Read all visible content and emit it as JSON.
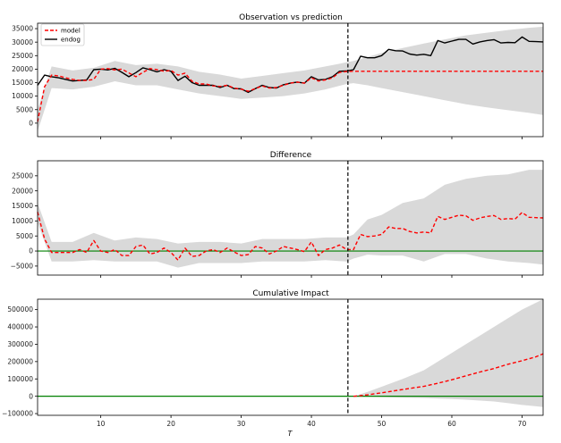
{
  "chart_data": [
    {
      "type": "line",
      "title": "Observation vs prediction",
      "xlabel": "",
      "ylabel": "",
      "xlim": [
        1,
        73
      ],
      "ylim": [
        -5000,
        37000
      ],
      "yticks": [
        0,
        5000,
        10000,
        15000,
        20000,
        25000,
        30000,
        35000
      ],
      "ytick_labels": [
        "0",
        "5000",
        "10000",
        "15000",
        "20000",
        "25000",
        "30000",
        "35000"
      ],
      "xticks": [
        10,
        20,
        30,
        40,
        50,
        60,
        70
      ],
      "show_xtick_labels": false,
      "intervention_x": 45.2,
      "legend": {
        "placement": "top-left",
        "entries": [
          "model",
          "endog"
        ]
      },
      "series": [
        {
          "name": "endog",
          "style": "solid",
          "color": "#000000",
          "x": [
            1,
            2,
            3,
            4,
            5,
            6,
            7,
            8,
            9,
            10,
            11,
            12,
            13,
            14,
            15,
            16,
            17,
            18,
            19,
            20,
            21,
            22,
            23,
            24,
            25,
            26,
            27,
            28,
            29,
            30,
            31,
            32,
            33,
            34,
            35,
            36,
            37,
            38,
            39,
            40,
            41,
            42,
            43,
            44,
            45,
            46,
            47,
            48,
            49,
            50,
            51,
            52,
            53,
            54,
            55,
            56,
            57,
            58,
            59,
            60,
            61,
            62,
            63,
            64,
            65,
            66,
            67,
            68,
            69,
            70,
            71,
            72,
            73
          ],
          "values": [
            14000,
            17800,
            17200,
            16800,
            16200,
            15600,
            15800,
            16000,
            19800,
            20000,
            19700,
            20300,
            18800,
            17200,
            18700,
            20500,
            19800,
            19000,
            19800,
            19200,
            15800,
            17400,
            15000,
            14000,
            14000,
            14000,
            13200,
            14000,
            12800,
            12700,
            11400,
            12800,
            14000,
            13200,
            13000,
            14200,
            14800,
            15200,
            14800,
            17200,
            16000,
            16200,
            17200,
            19200,
            19300,
            19800,
            24800,
            24200,
            24200,
            25000,
            27300,
            26800,
            26700,
            25600,
            25200,
            25500,
            25000,
            30600,
            29700,
            30400,
            31000,
            31000,
            29300,
            30100,
            30600,
            30900,
            29700,
            29900,
            29800,
            31900,
            30300,
            30200,
            30100
          ]
        },
        {
          "name": "model",
          "style": "dashed",
          "color": "#ff0000",
          "x": [
            1,
            2,
            3,
            4,
            5,
            6,
            7,
            8,
            9,
            10,
            11,
            12,
            13,
            14,
            15,
            16,
            17,
            18,
            19,
            20,
            21,
            22,
            23,
            24,
            25,
            26,
            27,
            28,
            29,
            30,
            31,
            32,
            33,
            34,
            35,
            36,
            37,
            38,
            39,
            40,
            41,
            42,
            43,
            44,
            45,
            46,
            47,
            48,
            49,
            50,
            51,
            52,
            53,
            54,
            55,
            56,
            57,
            58,
            59,
            60,
            61,
            62,
            63,
            64,
            65,
            66,
            67,
            68,
            69,
            70,
            71,
            72,
            73
          ],
          "values": [
            500,
            13500,
            17800,
            17500,
            16800,
            16200,
            15800,
            15800,
            16200,
            20000,
            20200,
            19700,
            20000,
            18600,
            17200,
            18800,
            20200,
            19800,
            19200,
            19500,
            17800,
            18500,
            15500,
            14500,
            14500,
            13800,
            13600,
            14000,
            13000,
            12600,
            11800,
            12800,
            13800,
            13000,
            13200,
            14000,
            14800,
            15200,
            14800,
            16800,
            15600,
            16000,
            16800,
            18800,
            19100,
            19200,
            19200,
            19200,
            19200,
            19200,
            19200,
            19200,
            19200,
            19200,
            19200,
            19200,
            19200,
            19200,
            19200,
            19200,
            19200,
            19200,
            19200,
            19200,
            19200,
            19200,
            19200,
            19200,
            19200,
            19200,
            19200,
            19200,
            19200
          ]
        }
      ],
      "band": {
        "x": [
          1,
          3,
          6,
          9,
          12,
          15,
          18,
          21,
          24,
          27,
          30,
          33,
          36,
          39,
          42,
          45,
          46,
          48,
          50,
          53,
          56,
          59,
          62,
          65,
          68,
          71,
          73
        ],
        "lower": [
          -3000,
          13000,
          12500,
          13500,
          15500,
          14000,
          14000,
          12500,
          11000,
          10000,
          9000,
          9500,
          10000,
          11000,
          12500,
          14500,
          14800,
          14000,
          13000,
          11500,
          10000,
          8500,
          7000,
          5800,
          4800,
          3800,
          3000
        ],
        "upper": [
          5000,
          21000,
          19500,
          20500,
          23000,
          21500,
          22000,
          21000,
          19000,
          18000,
          16500,
          17500,
          18500,
          19500,
          21000,
          22500,
          23000,
          24500,
          26000,
          27800,
          29500,
          31000,
          32500,
          33500,
          34500,
          35300,
          35700
        ]
      }
    },
    {
      "type": "line",
      "title": "Difference",
      "xlabel": "",
      "ylabel": "",
      "xlim": [
        1,
        73
      ],
      "ylim": [
        -8000,
        30000
      ],
      "yticks": [
        -5000,
        0,
        5000,
        10000,
        15000,
        20000,
        25000
      ],
      "ytick_labels": [
        "−5000",
        "0",
        "5000",
        "10000",
        "15000",
        "20000",
        "25000"
      ],
      "xticks": [
        10,
        20,
        30,
        40,
        50,
        60,
        70
      ],
      "show_xtick_labels": false,
      "intervention_x": 45.2,
      "zero_line_color": "#008000",
      "series": [
        {
          "style": "dashed",
          "color": "#ff0000",
          "x": [
            1,
            2,
            3,
            4,
            5,
            6,
            7,
            8,
            9,
            10,
            11,
            12,
            13,
            14,
            15,
            16,
            17,
            18,
            19,
            20,
            21,
            22,
            23,
            24,
            25,
            26,
            27,
            28,
            29,
            30,
            31,
            32,
            33,
            34,
            35,
            36,
            37,
            38,
            39,
            40,
            41,
            42,
            43,
            44,
            45,
            46,
            47,
            48,
            49,
            50,
            51,
            52,
            53,
            54,
            55,
            56,
            57,
            58,
            59,
            60,
            61,
            62,
            63,
            64,
            65,
            66,
            67,
            68,
            69,
            70,
            71,
            72,
            73
          ],
          "values": [
            13000,
            4000,
            -500,
            -500,
            -500,
            -500,
            500,
            -500,
            3500,
            0,
            -500,
            500,
            -1500,
            -1500,
            1500,
            2000,
            -1000,
            -500,
            1000,
            -500,
            -3000,
            1000,
            -1800,
            -1500,
            0,
            500,
            -500,
            1000,
            -300,
            -1500,
            -1200,
            1500,
            1000,
            -1000,
            0,
            1500,
            1000,
            500,
            -200,
            3000,
            -1500,
            500,
            1000,
            2000,
            500,
            500,
            5500,
            4800,
            5000,
            5500,
            8000,
            7500,
            7500,
            6500,
            6000,
            6300,
            6000,
            11500,
            10500,
            11200,
            11900,
            11700,
            10200,
            11000,
            11500,
            11800,
            10500,
            10800,
            10600,
            12800,
            11200,
            11100,
            11000
          ]
        }
      ],
      "band": {
        "x": [
          1,
          3,
          6,
          9,
          12,
          15,
          18,
          21,
          24,
          27,
          30,
          33,
          36,
          39,
          42,
          45,
          46,
          48,
          50,
          53,
          56,
          59,
          62,
          65,
          68,
          71,
          73
        ],
        "lower": [
          9500,
          -3500,
          -3500,
          -3000,
          -3500,
          -3500,
          -3500,
          -5500,
          -4000,
          -4000,
          -4000,
          -3500,
          -3500,
          -3500,
          -3000,
          -3500,
          -2500,
          -1200,
          -1500,
          -1500,
          -3500,
          -1000,
          -1000,
          -2500,
          -3500,
          -4000,
          -4500
        ],
        "upper": [
          16000,
          3000,
          3000,
          6000,
          3500,
          4500,
          4000,
          2500,
          3000,
          3000,
          2500,
          4000,
          4000,
          4000,
          4500,
          4500,
          5500,
          10500,
          12000,
          16000,
          17500,
          22000,
          24000,
          25000,
          25500,
          27000,
          27000
        ]
      }
    },
    {
      "type": "line",
      "title": "Cumulative Impact",
      "xlabel": "T",
      "ylabel": "",
      "xlim": [
        1,
        73
      ],
      "ylim": [
        -110000,
        560000
      ],
      "yticks": [
        -100000,
        0,
        100000,
        200000,
        300000,
        400000,
        500000
      ],
      "ytick_labels": [
        "−100000",
        "0",
        "100000",
        "200000",
        "300000",
        "400000",
        "500000"
      ],
      "xticks": [
        10,
        20,
        30,
        40,
        50,
        60,
        70
      ],
      "xtick_labels": [
        "10",
        "20",
        "30",
        "40",
        "50",
        "60",
        "70"
      ],
      "show_xtick_labels": true,
      "intervention_x": 45.2,
      "zero_line_color": "#008000",
      "series": [
        {
          "style": "dashed",
          "color": "#ff0000",
          "x": [
            46,
            48,
            50,
            52,
            54,
            56,
            58,
            60,
            62,
            64,
            66,
            68,
            70,
            72,
            73
          ],
          "values": [
            0,
            8000,
            20000,
            33000,
            45000,
            57000,
            75000,
            95000,
            118000,
            140000,
            160000,
            185000,
            205000,
            228000,
            245000
          ]
        }
      ],
      "band": {
        "x": [
          46,
          48,
          50,
          53,
          56,
          58,
          60,
          62,
          64,
          66,
          68,
          70,
          72,
          73
        ],
        "lower": [
          0,
          -3000,
          -5000,
          -8000,
          -10000,
          -13000,
          -16000,
          -20000,
          -25000,
          -30000,
          -40000,
          -50000,
          -58000,
          -62000
        ],
        "upper": [
          0,
          25000,
          55000,
          100000,
          150000,
          200000,
          250000,
          300000,
          350000,
          400000,
          450000,
          500000,
          540000,
          560000
        ]
      }
    }
  ]
}
